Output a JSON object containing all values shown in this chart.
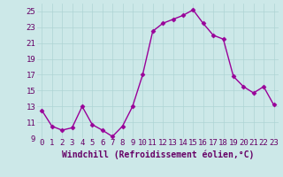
{
  "x": [
    0,
    1,
    2,
    3,
    4,
    5,
    6,
    7,
    8,
    9,
    10,
    11,
    12,
    13,
    14,
    15,
    16,
    17,
    18,
    19,
    20,
    21,
    22,
    23
  ],
  "y": [
    12.5,
    10.5,
    10.0,
    10.3,
    13.0,
    10.7,
    10.0,
    9.2,
    10.5,
    13.0,
    17.0,
    22.5,
    23.5,
    24.0,
    24.5,
    25.2,
    23.5,
    22.0,
    21.5,
    16.8,
    15.5,
    14.7,
    15.5,
    13.2
  ],
  "line_color": "#990099",
  "marker": "D",
  "marker_size": 2.5,
  "line_width": 1.0,
  "xlabel": "Windchill (Refroidissement éolien,°C)",
  "xlabel_fontsize": 7,
  "ylim": [
    9,
    26
  ],
  "xlim": [
    -0.5,
    23.5
  ],
  "yticks": [
    9,
    11,
    13,
    15,
    17,
    19,
    21,
    23,
    25
  ],
  "xtick_labels": [
    "0",
    "1",
    "2",
    "3",
    "4",
    "5",
    "6",
    "7",
    "8",
    "9",
    "10",
    "11",
    "12",
    "13",
    "14",
    "15",
    "16",
    "17",
    "18",
    "19",
    "20",
    "21",
    "22",
    "23"
  ],
  "grid_color": "#aed4d4",
  "bg_color": "#cce8e8",
  "tick_color": "#660066",
  "label_color": "#660066",
  "tick_fontsize": 6.5,
  "xlabel_fontweight": "bold"
}
